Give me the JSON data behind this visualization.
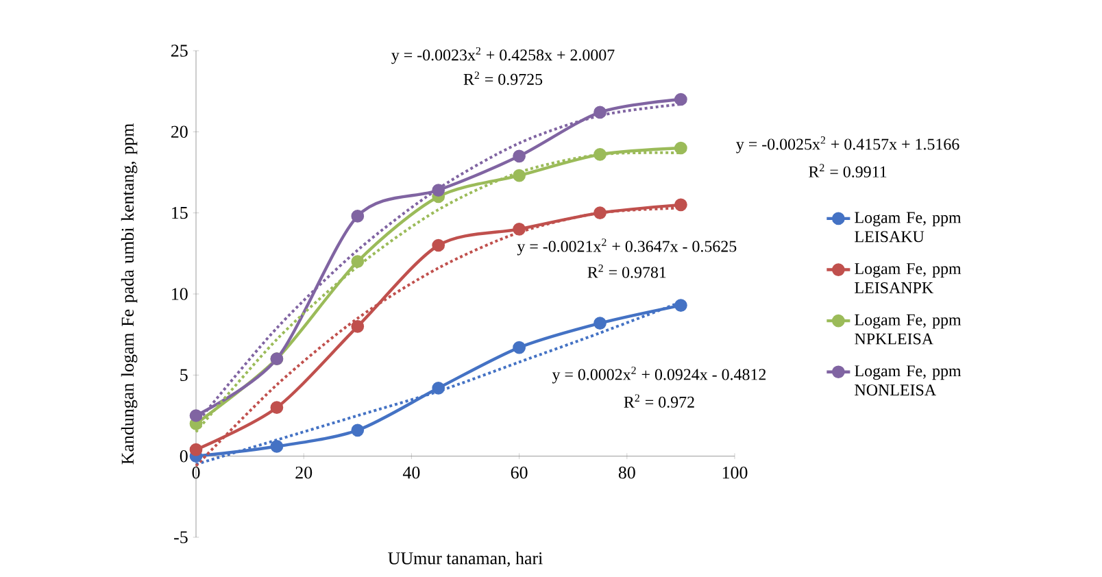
{
  "chart_data": {
    "type": "line",
    "xlabel": "UUmur tanaman, hari",
    "ylabel": "Kandungan logam Fe pada umbi kentang, ppm",
    "x": [
      0,
      15,
      30,
      45,
      60,
      75,
      90
    ],
    "xlim": [
      0,
      100
    ],
    "xticks": [
      0,
      20,
      40,
      60,
      80,
      100
    ],
    "ylim": [
      -5,
      25
    ],
    "yticks": [
      -5,
      0,
      5,
      10,
      15,
      20,
      25
    ],
    "marker": "circle",
    "line_style": "solid",
    "grid": false,
    "legend": "right",
    "series": [
      {
        "name": "Logam Fe, ppm LEISAKU",
        "color": "#4472c4",
        "values": [
          0,
          0.6,
          1.6,
          4.2,
          6.7,
          8.2,
          9.3
        ]
      },
      {
        "name": "Logam Fe, ppm LEISANPK",
        "color": "#c0504d",
        "values": [
          0.4,
          3,
          8,
          13,
          14,
          15,
          15.5
        ]
      },
      {
        "name": "Logam Fe, ppm NPKLEISA",
        "color": "#9bbb59",
        "values": [
          2,
          6,
          12,
          16,
          17.3,
          18.6,
          19
        ]
      },
      {
        "name": "Logam Fe, ppm NONLEISA",
        "color": "#8064a2",
        "values": [
          2.5,
          6,
          14.8,
          16.4,
          18.5,
          21.2,
          22
        ]
      },
      {
        "type": "line",
        "color": "#4472c4",
        "marker": "none",
        "line_style": "dotted",
        "x": [
          0,
          15,
          30,
          45,
          60,
          75,
          90
        ],
        "values": [
          -0.5,
          1,
          2.5,
          4,
          5.8,
          7.6,
          9.5
        ]
      },
      {
        "type": "line",
        "color": "#c0504d",
        "marker": "none",
        "line_style": "dotted",
        "x": [
          0,
          15,
          30,
          45,
          60,
          75,
          90
        ],
        "values": [
          -0.6,
          4.4,
          8.5,
          11.6,
          13.8,
          15,
          15.3
        ]
      },
      {
        "type": "line",
        "color": "#9bbb59",
        "marker": "none",
        "line_style": "dotted",
        "x": [
          0,
          15,
          30,
          45,
          60,
          75,
          90
        ],
        "values": [
          1.5,
          7.2,
          11.7,
          15.2,
          17.5,
          18.6,
          18.7
        ]
      },
      {
        "type": "line",
        "color": "#8064a2",
        "marker": "none",
        "line_style": "dotted",
        "x": [
          0,
          15,
          30,
          45,
          60,
          75,
          90
        ],
        "values": [
          2,
          7.9,
          12.7,
          16.5,
          19.3,
          21,
          21.7
        ]
      }
    ],
    "annotations": [
      "y = -0.0023x$^{2}$ + 0.4258x + 2.0007",
      "R$^{2}$ = 0.9725",
      "y = -0.0025x$^{2}$ + 0.4157x + 1.5166",
      "R$^{2}$ = 0.9911",
      "y = -0.0021x$^{2}$ + 0.3647x - 0.5625",
      "R$^{2}$ = 0.9781",
      "y = 0.0002x$^{2}$ + 0.0924x - 0.4812",
      "R$^{2}$ = 0.972"
    ]
  }
}
